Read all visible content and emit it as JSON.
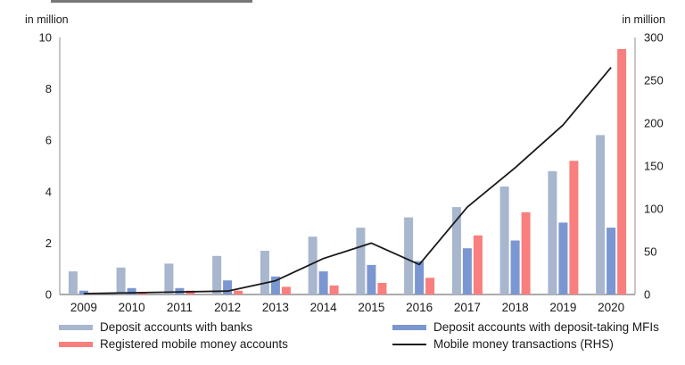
{
  "chart_data": {
    "type": "bar",
    "subtype": "grouped-bar-with-line-overlay",
    "categories": [
      "2009",
      "2010",
      "2011",
      "2012",
      "2013",
      "2014",
      "2015",
      "2016",
      "2017",
      "2018",
      "2019",
      "2020"
    ],
    "series": [
      {
        "name": "Deposit accounts with banks",
        "axis": "left",
        "color": "#a8b6ce",
        "values": [
          0.9,
          1.05,
          1.2,
          1.5,
          1.7,
          2.25,
          2.6,
          3.0,
          3.4,
          4.2,
          4.8,
          6.2
        ]
      },
      {
        "name": "Deposit accounts with deposit-taking MFIs",
        "axis": "left",
        "color": "#7b97d1",
        "values": [
          0.15,
          0.25,
          0.25,
          0.55,
          0.7,
          0.9,
          1.15,
          1.3,
          1.8,
          2.1,
          2.8,
          2.6
        ]
      },
      {
        "name": "Registered mobile money accounts",
        "axis": "left",
        "color": "#f97e7e",
        "values": [
          0.05,
          0.1,
          0.15,
          0.15,
          0.3,
          0.35,
          0.45,
          0.65,
          2.3,
          3.2,
          5.2,
          9.55
        ]
      }
    ],
    "line_series": {
      "name": "Mobile money transactions (RHS)",
      "axis": "right",
      "color": "#1a1a1a",
      "values": [
        1,
        2,
        3,
        4,
        16,
        42,
        60,
        35,
        102,
        148,
        198,
        265
      ]
    },
    "left_axis": {
      "label": "in million",
      "min": 0,
      "max": 10,
      "ticks": [
        0,
        2,
        4,
        6,
        8,
        10
      ]
    },
    "right_axis": {
      "label": "in million",
      "min": 0,
      "max": 300,
      "ticks": [
        0,
        50,
        100,
        150,
        200,
        250,
        300
      ]
    },
    "grid": false,
    "legend_position": "bottom"
  },
  "legend": {
    "columns": [
      {
        "items": [
          {
            "label": "Deposit accounts with banks",
            "swatch": "bar",
            "color": "#a8b6ce"
          },
          {
            "label": "Registered mobile money accounts",
            "swatch": "bar",
            "color": "#f97e7e"
          }
        ]
      },
      {
        "items": [
          {
            "label": "Deposit accounts with deposit-taking MFIs",
            "swatch": "bar",
            "color": "#7b97d1"
          },
          {
            "label": "Mobile money transactions (RHS)",
            "swatch": "line",
            "color": "#1a1a1a"
          }
        ]
      }
    ]
  },
  "colors": {
    "axis_line": "#8f8f8f",
    "axis_text": "#1a1a1a"
  }
}
